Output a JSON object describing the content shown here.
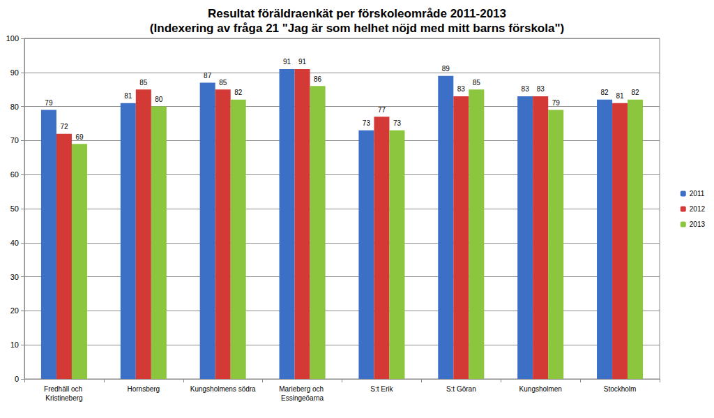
{
  "chart_data": {
    "type": "bar",
    "title": "Resultat föräldraenkät per förskoleområde 2011-2013",
    "subtitle": "(Indexering av fråga 21 \"Jag är som helhet nöjd med mitt barns förskola\")",
    "categories": [
      "Fredhäll och Kristineberg",
      "Hornsberg",
      "Kungsholmens södra",
      "Marieberg och Essingeöarna",
      "S:t Erik",
      "S:t Göran",
      "Kungsholmen",
      "Stockholm"
    ],
    "series": [
      {
        "name": "2011",
        "color": "#3c6fc6",
        "values": [
          79,
          81,
          87,
          91,
          73,
          89,
          83,
          82
        ]
      },
      {
        "name": "2012",
        "color": "#d43a35",
        "values": [
          72,
          85,
          85,
          91,
          77,
          83,
          83,
          81
        ]
      },
      {
        "name": "2013",
        "color": "#8cc63e",
        "values": [
          69,
          80,
          82,
          86,
          73,
          85,
          79,
          82
        ]
      }
    ],
    "ylim": [
      0,
      100
    ],
    "yticks": [
      0,
      10,
      20,
      30,
      40,
      50,
      60,
      70,
      80,
      90,
      100
    ],
    "grid": true,
    "legend": "right",
    "data_labels": true
  }
}
